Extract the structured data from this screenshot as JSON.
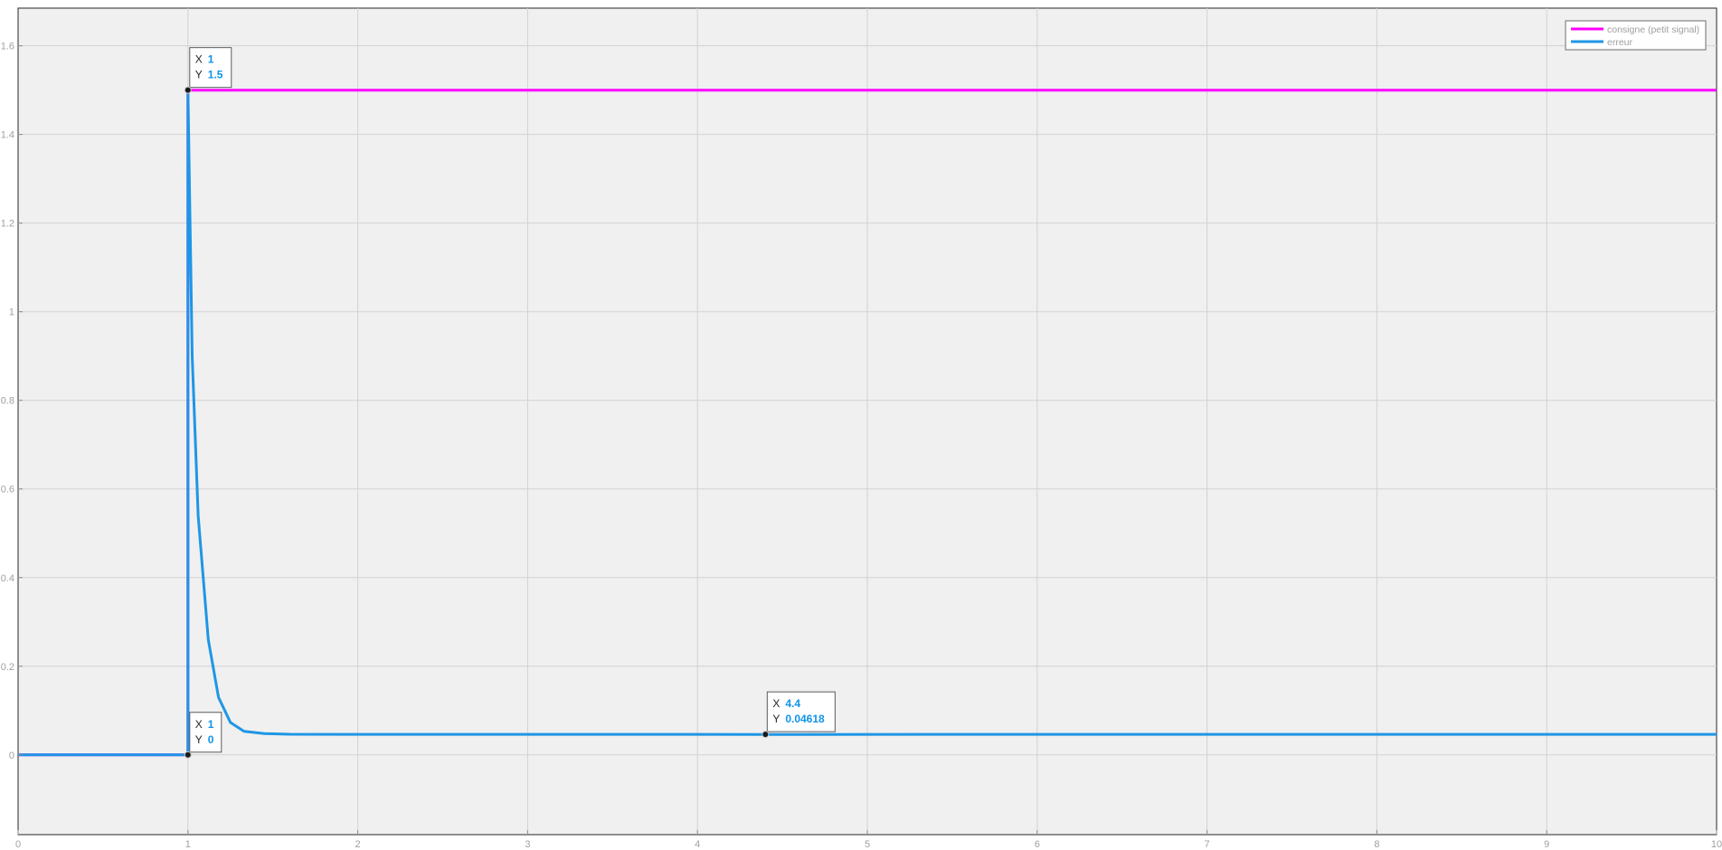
{
  "chart_data": {
    "type": "line",
    "title": "",
    "xlabel": "",
    "ylabel": "",
    "xlim": [
      0,
      10
    ],
    "ylim": [
      -0.18,
      1.685
    ],
    "grid": true,
    "xticks": [
      0,
      1,
      2,
      3,
      4,
      5,
      6,
      7,
      8,
      9,
      10
    ],
    "xtick_labels": [
      "0",
      "1",
      "2",
      "3",
      "4",
      "5",
      "6",
      "7",
      "8",
      "9",
      "10"
    ],
    "yticks": [
      0,
      0.2,
      0.4,
      0.6,
      0.8,
      1,
      1.2,
      1.4,
      1.6
    ],
    "ytick_labels": [
      "0",
      "0.2",
      "0.4",
      "0.6",
      "0.8",
      "1",
      "1.2",
      "1.4",
      "1.6"
    ],
    "legend": {
      "placement": "top-right"
    },
    "series": [
      {
        "name": "consigne (petit signal)",
        "color": "#ff00ff",
        "x": [
          0,
          1,
          1,
          10
        ],
        "y": [
          0,
          0,
          1.5,
          1.5
        ]
      },
      {
        "name": "erreur",
        "color": "#1e96e6",
        "x": [
          0,
          1,
          1,
          1.025,
          1.06,
          1.12,
          1.18,
          1.25,
          1.33,
          1.45,
          1.6,
          2,
          3,
          4.4,
          10
        ],
        "y": [
          0,
          0,
          1.5,
          0.9,
          0.54,
          0.26,
          0.13,
          0.073,
          0.053,
          0.048,
          0.0465,
          0.0462,
          0.0462,
          0.04618,
          0.0462
        ]
      }
    ],
    "annotations": [
      {
        "x": 1,
        "y": 1.5,
        "x_label": "X",
        "y_label": "Y",
        "x_text": "1",
        "y_text": "1.5"
      },
      {
        "x": 1,
        "y": 0,
        "x_label": "X",
        "y_label": "Y",
        "x_text": "1",
        "y_text": "0"
      },
      {
        "x": 4.4,
        "y": 0.04618,
        "x_label": "X",
        "y_label": "Y",
        "x_text": "4.4",
        "y_text": "0.04618"
      }
    ]
  }
}
